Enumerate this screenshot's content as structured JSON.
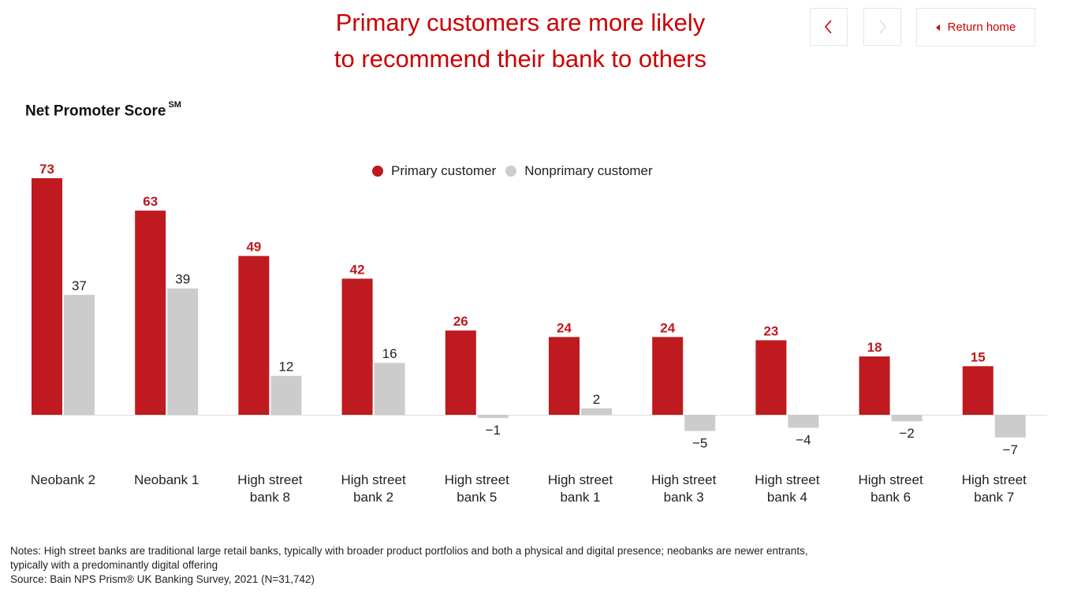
{
  "title_lines": [
    "Primary customers are more likely",
    "to recommend their bank to others"
  ],
  "nav": {
    "prev_icon": "chevron-left-icon",
    "next_icon": "chevron-right-icon",
    "return_label": "Return home",
    "return_icon": "caret-left-icon"
  },
  "colors": {
    "accent": "#cc0000",
    "primary_bar": "#be1a1f",
    "nonprimary_bar": "#cccccc",
    "nav_disabled": "#e0e0e0"
  },
  "chart_data": {
    "type": "bar",
    "title": "Net Promoter Score",
    "title_superscript": "SM",
    "categories": [
      [
        "Neobank 2"
      ],
      [
        "Neobank 1"
      ],
      [
        "High street",
        "bank 8"
      ],
      [
        "High street",
        "bank 2"
      ],
      [
        "High street",
        "bank 5"
      ],
      [
        "High street",
        "bank 1"
      ],
      [
        "High street",
        "bank 3"
      ],
      [
        "High street",
        "bank 4"
      ],
      [
        "High street",
        "bank 6"
      ],
      [
        "High street",
        "bank 7"
      ]
    ],
    "series": [
      {
        "name": "Primary customer",
        "values": [
          73,
          63,
          49,
          42,
          26,
          24,
          24,
          23,
          18,
          15
        ]
      },
      {
        "name": "Nonprimary customer",
        "values": [
          37,
          39,
          12,
          16,
          -1,
          2,
          -5,
          -4,
          -2,
          -7
        ]
      }
    ],
    "value_labels": [
      [
        "73",
        "63",
        "49",
        "42",
        "26",
        "24",
        "24",
        "23",
        "18",
        "15"
      ],
      [
        "37",
        "39",
        "12",
        "16",
        "−1",
        "2",
        "−5",
        "−4",
        "−2",
        "−7"
      ]
    ],
    "ylim": [
      -7,
      73
    ],
    "grid": false,
    "legend_position": "top-center"
  },
  "notes": {
    "line1": "Notes: High street banks are traditional large retail banks, typically with broader product portfolios and both a physical and digital presence; neobanks are newer entrants,",
    "line2": "typically with a predominantly digital offering",
    "source": "Source: Bain NPS Prism® UK Banking Survey, 2021 (N=31,742)"
  }
}
